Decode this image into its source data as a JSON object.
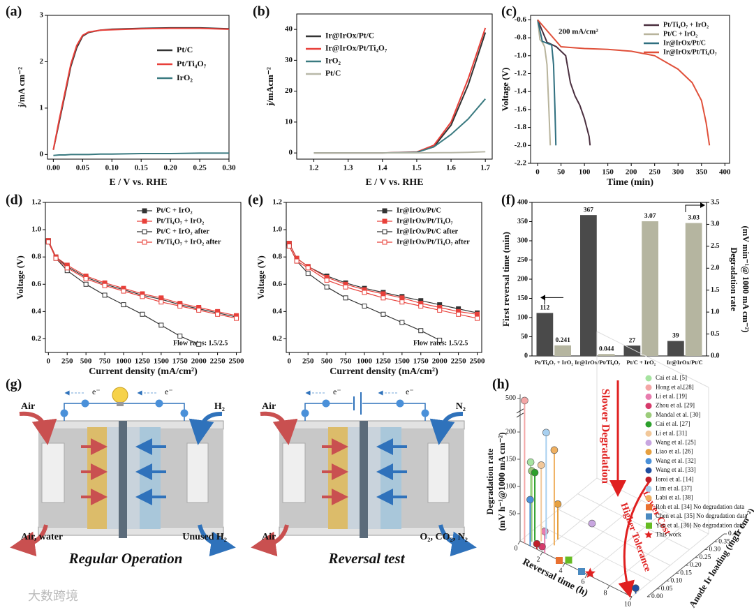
{
  "chart_data": [
    {
      "type": "line",
      "panel": "(a)",
      "xlabel": "E / V vs. RHE",
      "ylabel": "j/mA cm⁻²",
      "x": [
        0,
        0.01,
        0.02,
        0.03,
        0.04,
        0.05,
        0.06,
        0.08,
        0.1,
        0.15,
        0.2,
        0.25,
        0.3
      ],
      "series": [
        {
          "name": "Pt/C",
          "color": "#333333",
          "values": [
            0.1,
            0.7,
            1.3,
            1.9,
            2.3,
            2.55,
            2.63,
            2.68,
            2.7,
            2.72,
            2.73,
            2.73,
            2.71
          ]
        },
        {
          "name": "Pt/Ti₄O₇",
          "color": "#e8403a",
          "values": [
            0.1,
            0.75,
            1.35,
            1.95,
            2.35,
            2.57,
            2.64,
            2.68,
            2.69,
            2.71,
            2.72,
            2.72,
            2.7
          ]
        },
        {
          "name": "IrO₂",
          "color": "#3a7a80",
          "values": [
            -0.02,
            -0.01,
            -0.01,
            0,
            0,
            0,
            0,
            0.01,
            0.01,
            0.02,
            0.02,
            0.03,
            0.03
          ]
        }
      ],
      "xlim": [
        -0.01,
        0.3
      ],
      "xticks": [
        {
          "value": 0,
          "label": "0.00"
        },
        0.05,
        {
          "value": 0.1,
          "label": "0.10"
        },
        0.15,
        {
          "value": 0.2,
          "label": "0.20"
        },
        0.25,
        {
          "value": 0.3,
          "label": "0.30"
        }
      ],
      "ylim": [
        -0.1,
        3
      ],
      "yticks": [
        0,
        1,
        2,
        3
      ]
    },
    {
      "type": "line",
      "panel": "(b)",
      "xlabel": "E / V vs. RHE",
      "ylabel": "j/mAcm⁻²",
      "x": [
        1.2,
        1.3,
        1.4,
        1.5,
        1.55,
        1.6,
        1.65,
        1.7
      ],
      "series": [
        {
          "name": "Ir@IrOx/Pt/C",
          "color": "#333333",
          "values": [
            0,
            0,
            0,
            0.2,
            2,
            9,
            22,
            39
          ]
        },
        {
          "name": "Ir@IrOx/Pt/Ti₄O₇",
          "color": "#e8403a",
          "values": [
            0,
            0,
            0,
            0.3,
            2.5,
            10,
            24,
            40.5
          ]
        },
        {
          "name": "IrO₂",
          "color": "#3a7a80",
          "values": [
            0,
            0,
            0,
            0.2,
            2,
            6,
            11,
            17.5
          ]
        },
        {
          "name": "Pt/C",
          "color": "#b8b8a8",
          "values": [
            0,
            0,
            0,
            0,
            0.05,
            0.1,
            0.2,
            0.4
          ]
        }
      ],
      "xlim": [
        1.15,
        1.72
      ],
      "xticks": [
        1.2,
        1.3,
        1.4,
        1.5,
        1.6,
        1.7
      ],
      "ylim": [
        -2,
        45
      ],
      "yticks": [
        0,
        10,
        20,
        30,
        40
      ]
    },
    {
      "type": "line",
      "panel": "(c)",
      "xlabel": "Time (min)",
      "ylabel": "Voltage (V)",
      "annotation": "200 mA/cm²",
      "series": [
        {
          "name": "Pt/Ti₄O₇ + IrO₂",
          "color": "#4a2f3f",
          "x": [
            0,
            20,
            40,
            60,
            70,
            80,
            90,
            100,
            110,
            112
          ],
          "values": [
            -0.6,
            -0.85,
            -0.9,
            -1.0,
            -1.3,
            -1.45,
            -1.55,
            -1.7,
            -1.9,
            -2.0
          ]
        },
        {
          "name": "Pt/C + IrO₂",
          "color": "#b8b49c",
          "x": [
            0,
            5,
            10,
            15,
            20,
            24,
            27
          ],
          "values": [
            -0.6,
            -0.82,
            -0.85,
            -0.9,
            -1.1,
            -1.6,
            -2.0
          ]
        },
        {
          "name": "Ir@IrOx/Pt/C",
          "color": "#2f6f7f",
          "x": [
            0,
            10,
            20,
            30,
            34,
            37,
            39
          ],
          "values": [
            -0.6,
            -0.84,
            -0.86,
            -0.88,
            -1.1,
            -1.6,
            -2.0
          ]
        },
        {
          "name": "Ir@IrOx/Pt/Ti₄O₇",
          "color": "#e0503a",
          "x": [
            0,
            50,
            100,
            150,
            200,
            250,
            300,
            330,
            350,
            360,
            367
          ],
          "values": [
            -0.6,
            -0.9,
            -0.92,
            -0.93,
            -0.95,
            -1.0,
            -1.15,
            -1.3,
            -1.5,
            -1.75,
            -2.0
          ]
        }
      ],
      "xlim": [
        -15,
        410
      ],
      "xticks": [
        0,
        50,
        100,
        150,
        200,
        250,
        300,
        350,
        400
      ],
      "ylim": [
        -2.2,
        -0.55
      ],
      "yticks": [
        -0.6,
        -0.8,
        {
          "value": -1,
          "label": "-1.0"
        },
        -1.2,
        -1.4,
        -1.6,
        -1.8,
        {
          "value": -2,
          "label": "-2.0"
        },
        -2.2
      ]
    },
    {
      "type": "line",
      "panel": "(d)",
      "xlabel": "Current density (mA/cm²)",
      "ylabel": "Voltage (V)",
      "annotation": "Flow rates: 1.5/2.5",
      "x": [
        0,
        100,
        250,
        500,
        750,
        1000,
        1250,
        1500,
        1750,
        2000,
        2250,
        2500
      ],
      "series": [
        {
          "name": "Pt/C + IrO₂",
          "color": "#333333",
          "marker": "filled-square",
          "values": [
            0.92,
            0.8,
            0.73,
            0.65,
            0.6,
            0.56,
            0.52,
            0.49,
            0.45,
            0.42,
            0.39,
            0.36
          ]
        },
        {
          "name": "Pt/Ti₄O₇ + IrO₂",
          "color": "#e8403a",
          "marker": "filled-square",
          "values": [
            0.92,
            0.8,
            0.74,
            0.66,
            0.61,
            0.57,
            0.53,
            0.5,
            0.46,
            0.43,
            0.4,
            0.37
          ]
        },
        {
          "name": "Pt/C + IrO₂ after",
          "color": "#333333",
          "marker": "open-square",
          "values": [
            0.91,
            0.79,
            0.7,
            0.6,
            0.52,
            0.45,
            0.38,
            0.3,
            0.22,
            0.16,
            null,
            null
          ]
        },
        {
          "name": "Pt/Ti₄O₇ + IrO₂ after",
          "color": "#e8403a",
          "marker": "open-square",
          "values": [
            0.91,
            0.79,
            0.72,
            0.64,
            0.59,
            0.55,
            0.51,
            0.47,
            0.44,
            0.41,
            0.38,
            0.35
          ]
        }
      ],
      "xlim": [
        -40,
        2560
      ],
      "xticks": [
        0,
        250,
        500,
        750,
        1000,
        1250,
        1500,
        1750,
        2000,
        2250,
        2500
      ],
      "ylim": [
        0.1,
        1.2
      ],
      "yticks": [
        0.2,
        0.4,
        0.6,
        0.8,
        {
          "value": 1,
          "label": "1.0"
        },
        1.2
      ]
    },
    {
      "type": "line",
      "panel": "(e)",
      "xlabel": "Current density (mA/cm²)",
      "ylabel": "Voltage (V)",
      "annotation": "Flow rates: 1.5/2.5",
      "x": [
        0,
        100,
        250,
        500,
        750,
        1000,
        1250,
        1500,
        1750,
        2000,
        2250,
        2500
      ],
      "series": [
        {
          "name": "Ir@IrOx/Pt/C",
          "color": "#333333",
          "marker": "filled-square",
          "values": [
            0.9,
            0.79,
            0.73,
            0.66,
            0.61,
            0.57,
            0.54,
            0.51,
            0.48,
            0.45,
            0.42,
            0.39
          ]
        },
        {
          "name": "Ir@IrOx/Pt/Ti₄O₇",
          "color": "#e8403a",
          "marker": "filled-square",
          "values": [
            0.9,
            0.79,
            0.73,
            0.65,
            0.6,
            0.56,
            0.53,
            0.5,
            0.46,
            0.43,
            0.4,
            0.38
          ]
        },
        {
          "name": "Ir@IrOx/Pt/C after",
          "color": "#333333",
          "marker": "open-square",
          "values": [
            0.88,
            0.77,
            0.68,
            0.58,
            0.5,
            0.44,
            0.38,
            0.32,
            0.26,
            0.19,
            null,
            null
          ]
        },
        {
          "name": "Ir@IrOx/Pt/Ti₄O₇  after",
          "color": "#e8403a",
          "marker": "open-square",
          "values": [
            0.88,
            0.77,
            0.72,
            0.63,
            0.58,
            0.54,
            0.5,
            0.47,
            0.44,
            0.41,
            0.38,
            0.35
          ]
        }
      ],
      "xlim": [
        -40,
        2560
      ],
      "xticks": [
        0,
        250,
        500,
        750,
        1000,
        1250,
        1500,
        1750,
        2000,
        2250,
        2500
      ],
      "ylim": [
        0.1,
        1.2
      ],
      "yticks": [
        0.2,
        0.4,
        0.6,
        0.8,
        {
          "value": 1,
          "label": "1.0"
        },
        1.2
      ]
    },
    {
      "type": "bar",
      "panel": "(f)",
      "ylabel": "First reversal time (min)",
      "y2label": [
        "Degradation rate",
        "(mV min⁻¹@ 1000 mA cm⁻²)"
      ],
      "categories": [
        "Pt/Ti₄O₇ + IrO₂",
        "Ir@IrOx/Pt/Ti₄O₇",
        "Pt/C + IrO₂",
        "Ir@IrOx/Pt/C"
      ],
      "series": [
        {
          "color": "#4a4a4a",
          "values": [
            112,
            367,
            27,
            39
          ]
        },
        {
          "color": "#b5b5a0",
          "axis": "y2",
          "values": [
            0.241,
            0.044,
            3.07,
            3.03
          ]
        }
      ],
      "ylim": [
        0,
        400
      ],
      "yticks": [
        0,
        50,
        100,
        150,
        200,
        250,
        300,
        350,
        400
      ],
      "y2lim": [
        0,
        3.5
      ],
      "y2ticks": [
        {
          "value": 0,
          "label": "0.0"
        },
        0.5,
        {
          "value": 1,
          "label": "1.0"
        },
        1.5,
        {
          "value": 2,
          "label": "2.0"
        },
        2.5,
        {
          "value": 3,
          "label": "3.0"
        },
        3.5
      ]
    },
    {
      "type": "scatter",
      "panel": "(h)",
      "xlabel": "Reversal time (h)",
      "zlabel": "Anode Ir loading (mgIr cm⁻²)",
      "ylabel": [
        "Degradation rate",
        "(mV h⁻¹@1000 mA cm⁻²)"
      ],
      "annotations": [
        "Slower Degradation",
        "Lower Cost",
        "Higher Tolerance"
      ],
      "xlim": [
        0,
        10
      ],
      "xticks": [
        0,
        2,
        4,
        6,
        8,
        10
      ],
      "ylim": [
        0,
        500
      ],
      "yticks": [
        50,
        100,
        150,
        200,
        500
      ],
      "zlim": [
        0,
        0.4
      ],
      "zticks": [
        {
          "value": 0,
          "label": "0.00"
        },
        0.05,
        {
          "value": 0.1,
          "label": "0.10"
        },
        0.15,
        {
          "value": 0.2,
          "label": "0.20"
        },
        0.25,
        {
          "value": 0.3,
          "label": "0.30"
        },
        0.35,
        {
          "value": 0.4,
          "label": "0.40"
        }
      ],
      "series": [
        {
          "name": "Cai et al. [5]",
          "color": "#a6e3a0",
          "marker": "sphere",
          "x": [
            0.6
          ],
          "z": [
            0.02
          ],
          "values": [
            145
          ]
        },
        {
          "name": "Hong et al.[28]",
          "color": "#f4a6a6",
          "marker": "sphere",
          "x": [
            0.4
          ],
          "z": [
            0
          ],
          "values": [
            500
          ]
        },
        {
          "name": "Li et al. [19]",
          "color": "#e87cae",
          "marker": "sphere",
          "x": [
            2.2
          ],
          "z": [
            0
          ],
          "values": [
            40
          ]
        },
        {
          "name": "Zhou et al. [29]",
          "color": "#d63a6a",
          "marker": "sphere",
          "x": [
            1.8
          ],
          "z": [
            0.01
          ],
          "values": [
            5
          ]
        },
        {
          "name": "Mandal et al. [30]",
          "color": "#9ccc7a",
          "marker": "sphere",
          "x": [
            0.7
          ],
          "z": [
            0.02
          ],
          "values": [
            130
          ]
        },
        {
          "name": "Cai et al. [27]",
          "color": "#2ca02c",
          "marker": "sphere",
          "x": [
            0.8
          ],
          "z": [
            0.03
          ],
          "values": [
            125
          ]
        },
        {
          "name": "Li et al. [31]",
          "color": "#f2c89a",
          "marker": "sphere",
          "x": [
            1.2
          ],
          "z": [
            0.04
          ],
          "values": [
            140
          ]
        },
        {
          "name": "Wang et al. [25]",
          "color": "#c8a6e0",
          "marker": "sphere",
          "x": [
            3
          ],
          "z": [
            0.2
          ],
          "values": [
            5
          ]
        },
        {
          "name": "Liao et al. [26]",
          "color": "#e6a040",
          "marker": "sphere",
          "x": [
            2
          ],
          "z": [
            0.08
          ],
          "values": [
            65
          ]
        },
        {
          "name": "Wang et al. [32]",
          "color": "#4a90d9",
          "marker": "sphere",
          "x": [
            0.9
          ],
          "z": [
            0
          ],
          "values": [
            85
          ]
        },
        {
          "name": "Wang et al. [33]",
          "color": "#1f4ea0",
          "marker": "sphere",
          "x": [
            10
          ],
          "z": [
            0.02
          ],
          "values": [
            10
          ]
        },
        {
          "name": "Ioroi et al. [14]",
          "color": "#c0202a",
          "marker": "sphere",
          "x": [
            1.5
          ],
          "z": [
            0
          ],
          "values": [
            10
          ]
        },
        {
          "name": "Lim et al. [37]",
          "color": "#a8d0f0",
          "marker": "sphere",
          "x": [
            1.3
          ],
          "z": [
            0.06
          ],
          "values": [
            195
          ]
        },
        {
          "name": "Labi et al. [38]",
          "color": "#f0b060",
          "marker": "sphere",
          "x": [
            2.2
          ],
          "z": [
            0.05
          ],
          "values": [
            175
          ]
        },
        {
          "name": "Roh et al. [34] No degradation data",
          "color": "#e87030",
          "marker": "square",
          "x": [
            3.5
          ],
          "z": [
            0
          ],
          "values": [
            null
          ]
        },
        {
          "name": "Chen et al. [35] No degradation data",
          "color": "#4a8ac0",
          "marker": "square",
          "x": [
            5.5
          ],
          "z": [
            0
          ],
          "values": [
            null
          ]
        },
        {
          "name": "You et al. [36] No degradation data",
          "color": "#66bb22",
          "marker": "square",
          "x": [
            4
          ],
          "z": [
            0.02
          ],
          "values": [
            null
          ]
        },
        {
          "name": "This work",
          "color": "#e02020",
          "marker": "star",
          "x": [
            6.1
          ],
          "z": [
            0.01
          ],
          "values": [
            0.2
          ]
        }
      ]
    }
  ],
  "diagram": {
    "panel": "(g)",
    "regular": {
      "title": "Regular Operation",
      "electron": [
        "e⁻",
        "e⁻"
      ],
      "inlet_left": "Air",
      "inlet_right": "H₂",
      "outlet_left": "Air, water",
      "outlet_right": "Unused H₂"
    },
    "reversal": {
      "title": "Reversal test",
      "electron": [
        "e⁻",
        "e⁻"
      ],
      "inlet_left": "Air",
      "inlet_right": "N₂",
      "outlet_left": "Air",
      "outlet_right": "O₂, CO₂, N₂"
    }
  },
  "watermark": "大数跨境"
}
